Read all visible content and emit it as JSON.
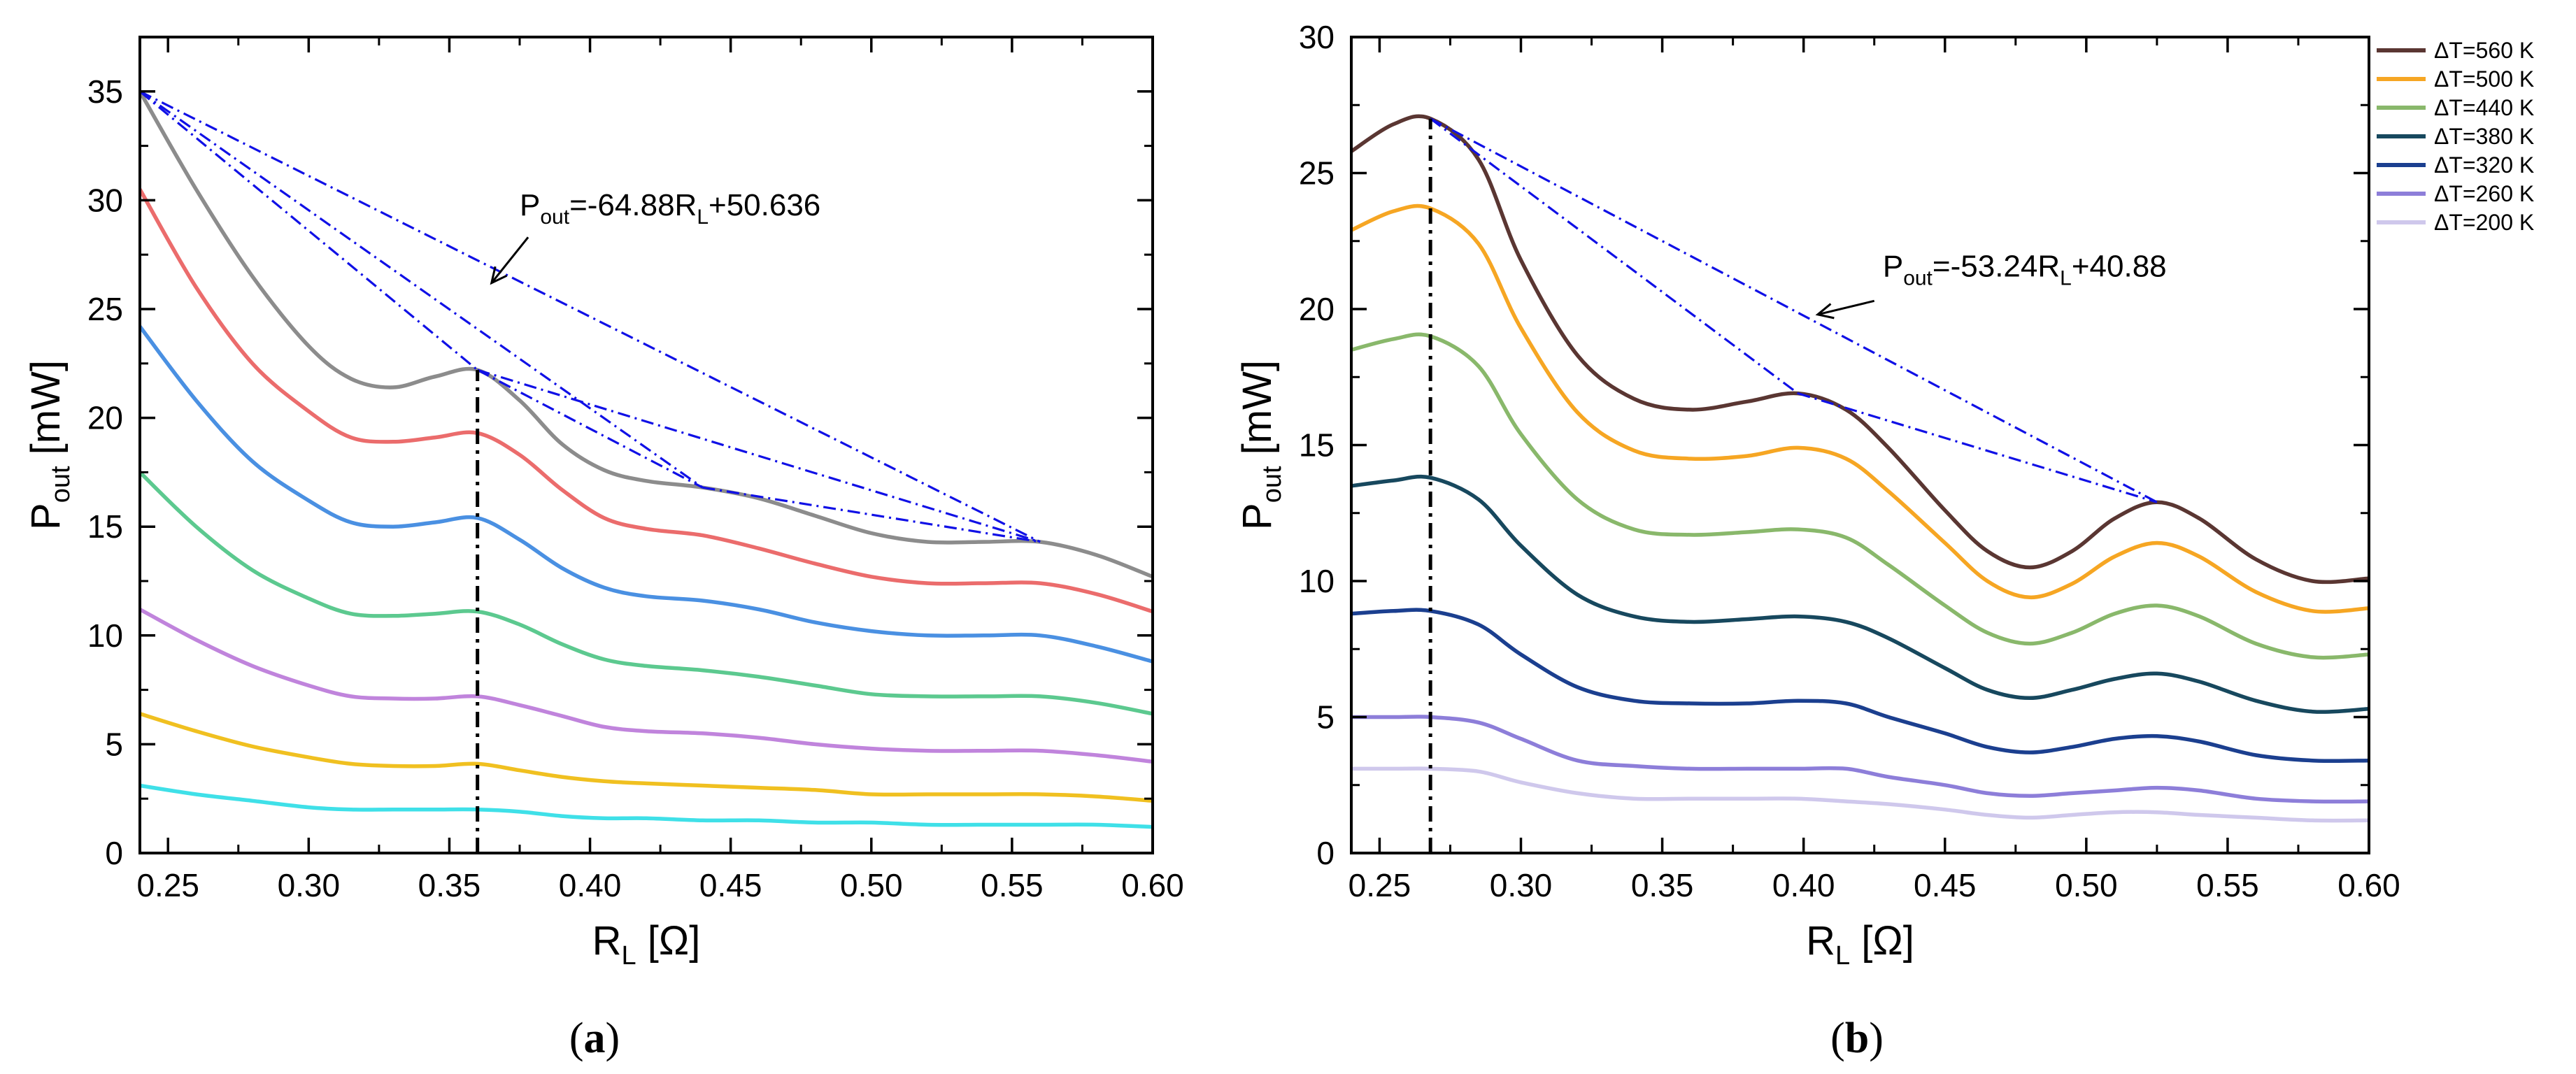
{
  "chart_data": [
    {
      "panel": "a",
      "type": "line",
      "caption_letter": "a",
      "xlabel": {
        "main": "R",
        "sub": "L",
        "rest": " [Ω]"
      },
      "ylabel": {
        "main": "P",
        "sub": "out",
        "rest": " [mW]"
      },
      "xlim": [
        0.24,
        0.6
      ],
      "ylim": [
        0,
        37.5
      ],
      "xticks": [
        0.25,
        0.3,
        0.35,
        0.4,
        0.45,
        0.5,
        0.55,
        0.6
      ],
      "xtick_labels": [
        "0.25",
        "0.30",
        "0.35",
        "0.40",
        "0.45",
        "0.50",
        "0.55",
        "0.60"
      ],
      "yticks": [
        0,
        5,
        10,
        15,
        20,
        25,
        30,
        35
      ],
      "ytick_labels": [
        "0",
        "5",
        "10",
        "15",
        "20",
        "25",
        "30",
        "35"
      ],
      "x": [
        0.24,
        0.26,
        0.28,
        0.3,
        0.315,
        0.33,
        0.345,
        0.36,
        0.375,
        0.39,
        0.405,
        0.42,
        0.44,
        0.46,
        0.48,
        0.5,
        0.52,
        0.54,
        0.56,
        0.58,
        0.6
      ],
      "series": [
        {
          "name": "gray",
          "color": "#8c8c8c",
          "values": [
            35.0,
            30.5,
            26.5,
            23.3,
            21.8,
            21.4,
            21.9,
            22.2,
            20.8,
            18.8,
            17.6,
            17.1,
            16.8,
            16.3,
            15.5,
            14.7,
            14.3,
            14.3,
            14.3,
            13.7,
            12.7
          ]
        },
        {
          "name": "red",
          "color": "#eb6c6c",
          "values": [
            30.5,
            26.0,
            22.5,
            20.3,
            19.1,
            18.9,
            19.1,
            19.3,
            18.3,
            16.7,
            15.4,
            14.9,
            14.6,
            14.0,
            13.3,
            12.7,
            12.4,
            12.4,
            12.4,
            11.9,
            11.1
          ]
        },
        {
          "name": "blue",
          "color": "#4a90e2",
          "values": [
            24.2,
            20.8,
            18.0,
            16.2,
            15.2,
            15.0,
            15.2,
            15.4,
            14.4,
            13.1,
            12.2,
            11.8,
            11.6,
            11.2,
            10.6,
            10.2,
            10.0,
            10.0,
            10.0,
            9.5,
            8.8
          ]
        },
        {
          "name": "green",
          "color": "#5cc98f",
          "values": [
            17.5,
            15.0,
            13.0,
            11.7,
            11.0,
            10.9,
            11.0,
            11.1,
            10.5,
            9.6,
            8.9,
            8.6,
            8.4,
            8.1,
            7.7,
            7.3,
            7.2,
            7.2,
            7.2,
            6.9,
            6.4
          ]
        },
        {
          "name": "purple",
          "color": "#c084dc",
          "values": [
            11.2,
            9.8,
            8.6,
            7.7,
            7.2,
            7.1,
            7.1,
            7.2,
            6.8,
            6.3,
            5.8,
            5.6,
            5.5,
            5.3,
            5.0,
            4.8,
            4.7,
            4.7,
            4.7,
            4.5,
            4.2
          ]
        },
        {
          "name": "orange",
          "color": "#f0c020",
          "values": [
            6.4,
            5.6,
            4.9,
            4.4,
            4.1,
            4.0,
            4.0,
            4.1,
            3.8,
            3.5,
            3.3,
            3.2,
            3.1,
            3.0,
            2.9,
            2.7,
            2.7,
            2.7,
            2.7,
            2.6,
            2.4
          ]
        },
        {
          "name": "cyan",
          "color": "#3fe0e8",
          "values": [
            3.1,
            2.7,
            2.4,
            2.1,
            2.0,
            2.0,
            2.0,
            2.0,
            1.9,
            1.7,
            1.6,
            1.6,
            1.5,
            1.5,
            1.4,
            1.4,
            1.3,
            1.3,
            1.3,
            1.3,
            1.2
          ]
        }
      ],
      "dashed_lines": [
        {
          "x1": 0.24,
          "y1": 35.0,
          "x2": 0.56,
          "y2": 14.3
        },
        {
          "x1": 0.24,
          "y1": 35.0,
          "x2": 0.44,
          "y2": 16.8
        },
        {
          "x1": 0.24,
          "y1": 35.0,
          "x2": 0.36,
          "y2": 22.2
        },
        {
          "x1": 0.36,
          "y1": 22.2,
          "x2": 0.56,
          "y2": 14.3
        },
        {
          "x1": 0.36,
          "y1": 22.2,
          "x2": 0.44,
          "y2": 16.8
        },
        {
          "x1": 0.44,
          "y1": 16.8,
          "x2": 0.56,
          "y2": 14.3
        }
      ],
      "vline": {
        "x": 0.36,
        "y_top": 22.2
      },
      "annotation": {
        "prefix": "P",
        "sub1": "out",
        "mid": "=-64.88R",
        "sub2": "L",
        "suffix": "+50.636",
        "text_x": 0.375,
        "text_y": 29.3,
        "arrow_from": [
          0.378,
          28.3
        ],
        "arrow_to": [
          0.365,
          26.2
        ]
      }
    },
    {
      "panel": "b",
      "type": "line",
      "caption_letter": "b",
      "xlabel": {
        "main": "R",
        "sub": "L",
        "rest": " [Ω]"
      },
      "ylabel": {
        "main": "P",
        "sub": "out",
        "rest": " [mW]"
      },
      "xlim": [
        0.24,
        0.6
      ],
      "ylim": [
        0,
        30
      ],
      "xticks": [
        0.25,
        0.3,
        0.35,
        0.4,
        0.45,
        0.5,
        0.55,
        0.6
      ],
      "xtick_labels": [
        "0.25",
        "0.30",
        "0.35",
        "0.40",
        "0.45",
        "0.50",
        "0.55",
        "0.60"
      ],
      "yticks": [
        0,
        5,
        10,
        15,
        20,
        25,
        30
      ],
      "ytick_labels": [
        "0",
        "5",
        "10",
        "15",
        "20",
        "25",
        "30"
      ],
      "x": [
        0.24,
        0.255,
        0.268,
        0.285,
        0.3,
        0.32,
        0.34,
        0.36,
        0.38,
        0.398,
        0.415,
        0.43,
        0.45,
        0.465,
        0.48,
        0.495,
        0.51,
        0.525,
        0.54,
        0.56,
        0.58,
        0.6
      ],
      "legend": {
        "position": "top-right"
      },
      "series": [
        {
          "name": "ΔT=560 K",
          "color": "#5a3632",
          "values": [
            25.8,
            26.8,
            27.0,
            25.5,
            21.8,
            18.3,
            16.7,
            16.3,
            16.6,
            16.9,
            16.3,
            14.9,
            12.6,
            11.1,
            10.5,
            11.1,
            12.3,
            12.9,
            12.3,
            10.8,
            10.0,
            10.1
          ]
        },
        {
          "name": "ΔT=500 K",
          "color": "#f6a623",
          "values": [
            22.9,
            23.6,
            23.7,
            22.4,
            19.3,
            16.2,
            14.8,
            14.5,
            14.6,
            14.9,
            14.5,
            13.3,
            11.4,
            10.0,
            9.4,
            9.9,
            10.9,
            11.4,
            10.9,
            9.6,
            8.9,
            9.0
          ]
        },
        {
          "name": "ΔT=440 K",
          "color": "#89b86b",
          "values": [
            18.5,
            18.9,
            19.0,
            17.9,
            15.4,
            13.0,
            11.9,
            11.7,
            11.8,
            11.9,
            11.6,
            10.6,
            9.1,
            8.1,
            7.7,
            8.1,
            8.8,
            9.1,
            8.7,
            7.7,
            7.2,
            7.3
          ]
        },
        {
          "name": "ΔT=380 K",
          "color": "#17485e",
          "values": [
            13.5,
            13.7,
            13.8,
            13.0,
            11.3,
            9.5,
            8.7,
            8.5,
            8.6,
            8.7,
            8.5,
            7.9,
            6.8,
            6.0,
            5.7,
            6.0,
            6.4,
            6.6,
            6.3,
            5.6,
            5.2,
            5.3
          ]
        },
        {
          "name": "ΔT=320 K",
          "color": "#1b3f8f",
          "values": [
            8.8,
            8.9,
            8.9,
            8.4,
            7.3,
            6.1,
            5.6,
            5.5,
            5.5,
            5.6,
            5.5,
            5.0,
            4.4,
            3.9,
            3.7,
            3.9,
            4.2,
            4.3,
            4.1,
            3.6,
            3.4,
            3.4
          ]
        },
        {
          "name": "ΔT=260 K",
          "color": "#8d7ed9",
          "values": [
            5.0,
            5.0,
            5.0,
            4.8,
            4.2,
            3.4,
            3.2,
            3.1,
            3.1,
            3.1,
            3.1,
            2.8,
            2.5,
            2.2,
            2.1,
            2.2,
            2.3,
            2.4,
            2.3,
            2.0,
            1.9,
            1.9
          ]
        },
        {
          "name": "ΔT=200 K",
          "color": "#cfc8ec",
          "values": [
            3.1,
            3.1,
            3.1,
            3.0,
            2.6,
            2.2,
            2.0,
            2.0,
            2.0,
            2.0,
            1.9,
            1.8,
            1.6,
            1.4,
            1.3,
            1.4,
            1.5,
            1.5,
            1.4,
            1.3,
            1.2,
            1.2
          ]
        }
      ],
      "dashed_lines": [
        {
          "x1": 0.268,
          "y1": 27.0,
          "x2": 0.525,
          "y2": 12.9
        },
        {
          "x1": 0.268,
          "y1": 27.0,
          "x2": 0.398,
          "y2": 16.9
        },
        {
          "x1": 0.398,
          "y1": 16.9,
          "x2": 0.525,
          "y2": 12.9
        }
      ],
      "vline": {
        "x": 0.268,
        "y_top": 27.0
      },
      "annotation": {
        "prefix": "P",
        "sub1": "out",
        "mid": "=-53.24R",
        "sub2": "L",
        "suffix": "+40.88",
        "text_x": 0.428,
        "text_y": 21.2,
        "arrow_from": [
          0.425,
          20.3
        ],
        "arrow_to": [
          0.405,
          19.8
        ]
      }
    }
  ]
}
